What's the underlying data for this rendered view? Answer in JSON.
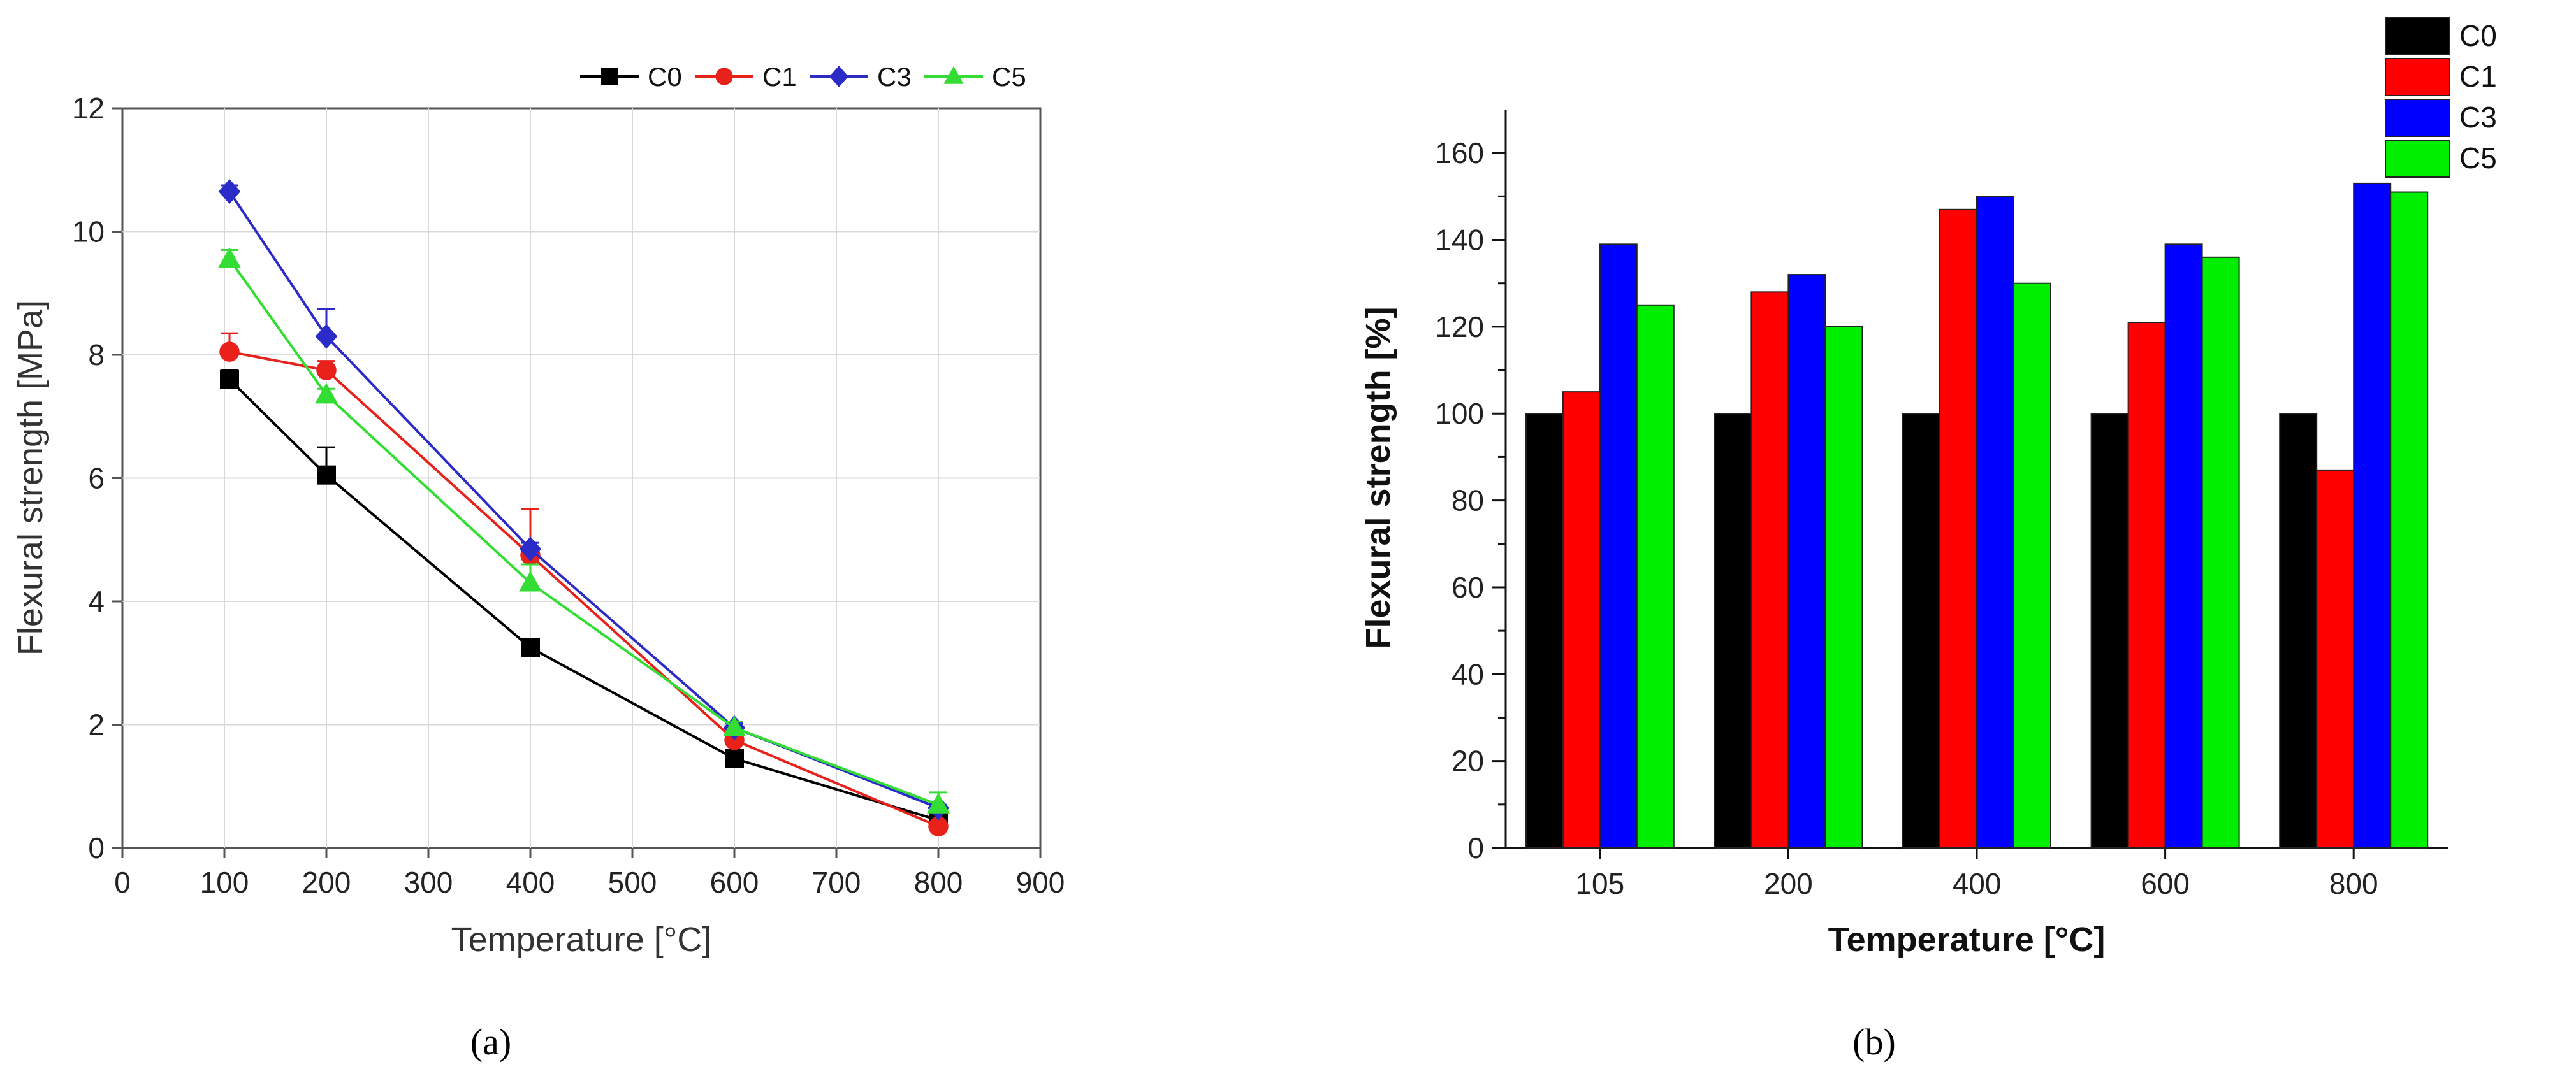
{
  "chart_data": [
    {
      "type": "line",
      "panel_label": "(a)",
      "xlabel": "Temperature [°C]",
      "ylabel": "Flexural strength [MPa]",
      "xlim": [
        0,
        900
      ],
      "ylim": [
        0,
        12
      ],
      "xticks": [
        0,
        100,
        200,
        300,
        400,
        500,
        600,
        700,
        800,
        900
      ],
      "yticks": [
        0,
        2,
        4,
        6,
        8,
        10,
        12
      ],
      "grid": true,
      "legend_position": "top-right",
      "x": [
        105,
        200,
        400,
        600,
        800
      ],
      "series": [
        {
          "name": "C0",
          "color": "#000000",
          "marker": "square",
          "values": [
            7.6,
            6.05,
            3.25,
            1.45,
            0.45
          ],
          "errors": [
            0.15,
            0.45,
            0.05,
            0.08,
            0.05
          ]
        },
        {
          "name": "C1",
          "color": "#e8221b",
          "marker": "circle",
          "values": [
            8.05,
            7.75,
            4.75,
            1.75,
            0.35
          ],
          "errors": [
            0.3,
            0.15,
            0.75,
            0.12,
            0.05
          ]
        },
        {
          "name": "C3",
          "color": "#2b2bc8",
          "marker": "diamond",
          "values": [
            10.65,
            8.3,
            4.85,
            1.95,
            0.65
          ],
          "errors": [
            0.1,
            0.45,
            0.1,
            0.08,
            0.05
          ]
        },
        {
          "name": "C5",
          "color": "#33dd33",
          "marker": "triangle",
          "values": [
            9.55,
            7.35,
            4.3,
            1.95,
            0.7
          ],
          "errors": [
            0.15,
            0.1,
            0.3,
            0.1,
            0.2
          ]
        }
      ]
    },
    {
      "type": "bar",
      "panel_label": "(b)",
      "xlabel": "Temperature [°C]",
      "ylabel": "Flexural strength [%]",
      "ylim": [
        0,
        170
      ],
      "yticks": [
        0,
        20,
        40,
        60,
        80,
        100,
        120,
        140,
        160
      ],
      "categories": [
        "105",
        "200",
        "400",
        "600",
        "800"
      ],
      "legend_position": "top-right",
      "series": [
        {
          "name": "C0",
          "color": "#000000",
          "values": [
            100,
            100,
            100,
            100,
            100
          ]
        },
        {
          "name": "C1",
          "color": "#ff0000",
          "values": [
            105,
            128,
            147,
            121,
            87
          ]
        },
        {
          "name": "C3",
          "color": "#0000ff",
          "values": [
            139,
            132,
            150,
            139,
            153
          ]
        },
        {
          "name": "C5",
          "color": "#00ee00",
          "values": [
            125,
            120,
            130,
            136,
            151
          ]
        }
      ]
    }
  ]
}
